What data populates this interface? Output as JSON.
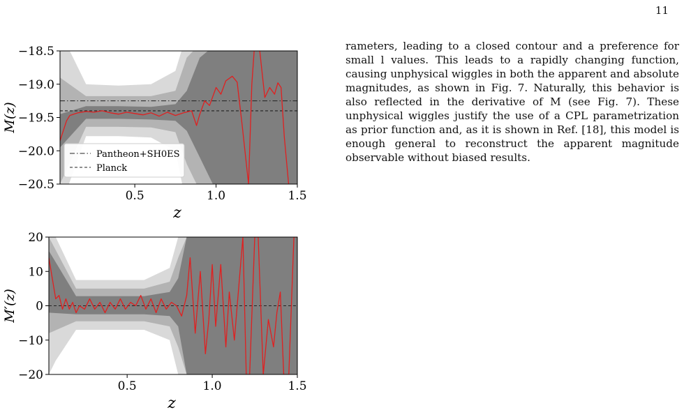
{
  "page": {
    "number": "11",
    "paragraph": "rameters, leading to a closed contour and a preference for small l values. This leads to a rapidly changing function, causing unphysical wiggles in both the apparent and absolute magnitudes, as shown in Fig. 7. Naturally, this behavior is also reflected in the derivative of M (see Fig. 7). These unphysical wiggles justify the use of a CPL parametrization as prior function and, as it is shown in Ref. [18], this model is enough general to reconstruct the apparent magnitude observable without biased results."
  },
  "colors": {
    "band_outer": "#d9d9d9",
    "band_mid": "#b3b3b3",
    "band_inner": "#7f7f7f",
    "median": "#e02020"
  },
  "chart_data": [
    {
      "type": "line",
      "panel": "top",
      "xlabel": "z",
      "ylabel": "M(z)",
      "xlim": [
        0.04,
        1.5
      ],
      "ylim": [
        -20.5,
        -18.5
      ],
      "xticks": [
        "0.5",
        "1.0",
        "1.5"
      ],
      "xtick_values": [
        0.5,
        1.0,
        1.5
      ],
      "yticks": [
        "−18.5",
        "−19.0",
        "−19.5",
        "−20.0",
        "−20.5"
      ],
      "ytick_values": [
        -18.5,
        -19.0,
        -19.5,
        -20.0,
        -20.5
      ],
      "reference_lines": [
        {
          "name": "Pantheon+SH0ES",
          "y": -19.25,
          "style": "dashdot"
        },
        {
          "name": "Planck",
          "y": -19.4,
          "style": "dashed"
        }
      ],
      "legend": {
        "position": "lower-left",
        "entries": [
          "Pantheon+SH0ES",
          "Planck"
        ]
      },
      "series": [
        {
          "role": "median",
          "x": [
            0.04,
            0.06,
            0.08,
            0.1,
            0.15,
            0.2,
            0.25,
            0.3,
            0.35,
            0.4,
            0.45,
            0.5,
            0.55,
            0.6,
            0.65,
            0.7,
            0.75,
            0.8,
            0.85,
            0.88,
            0.9,
            0.93,
            0.96,
            1.0,
            1.03,
            1.06,
            1.1,
            1.13,
            1.16,
            1.2,
            1.22,
            1.24,
            1.26,
            1.3,
            1.33,
            1.36,
            1.38,
            1.4,
            1.42,
            1.45
          ],
          "y": [
            -19.85,
            -19.7,
            -19.55,
            -19.47,
            -19.43,
            -19.41,
            -19.42,
            -19.4,
            -19.43,
            -19.45,
            -19.42,
            -19.44,
            -19.46,
            -19.43,
            -19.48,
            -19.42,
            -19.47,
            -19.43,
            -19.4,
            -19.62,
            -19.45,
            -19.25,
            -19.32,
            -19.05,
            -19.15,
            -18.95,
            -18.88,
            -18.97,
            -19.6,
            -20.5,
            -19.0,
            -18.3,
            -18.3,
            -19.2,
            -19.05,
            -19.15,
            -18.98,
            -19.05,
            -19.8,
            -20.6
          ]
        },
        {
          "role": "band-1sigma",
          "x": [
            0.04,
            0.2,
            0.4,
            0.6,
            0.75,
            0.82,
            0.9,
            1.0,
            1.1,
            1.2,
            1.3,
            1.4,
            1.5
          ],
          "lower": [
            -19.95,
            -19.52,
            -19.52,
            -19.53,
            -19.55,
            -19.7,
            -20.1,
            -20.6,
            -20.6,
            -20.6,
            -20.6,
            -20.6,
            -20.6
          ],
          "upper": [
            -19.45,
            -19.33,
            -19.33,
            -19.34,
            -19.3,
            -19.1,
            -18.6,
            -18.4,
            -18.4,
            -18.4,
            -18.4,
            -18.4,
            -18.4
          ]
        },
        {
          "role": "band-2sigma",
          "x": [
            0.04,
            0.2,
            0.4,
            0.6,
            0.75,
            0.82,
            0.9,
            1.0,
            1.5
          ],
          "lower": [
            -20.5,
            -19.64,
            -19.64,
            -19.65,
            -19.72,
            -20.2,
            -20.6,
            -20.6,
            -20.6
          ],
          "upper": [
            -18.9,
            -19.18,
            -19.18,
            -19.18,
            -19.1,
            -18.6,
            -18.4,
            -18.4,
            -18.4
          ]
        },
        {
          "role": "band-3sigma",
          "x": [
            0.04,
            0.08,
            0.2,
            0.4,
            0.6,
            0.75,
            0.8,
            1.5
          ],
          "lower": [
            -20.6,
            -20.6,
            -19.78,
            -19.78,
            -19.8,
            -20.0,
            -20.6,
            -20.6
          ],
          "upper": [
            -18.4,
            -18.4,
            -19.0,
            -19.02,
            -19.0,
            -18.8,
            -18.4,
            -18.4
          ]
        }
      ]
    },
    {
      "type": "line",
      "panel": "bottom",
      "xlabel": "z",
      "ylabel": "M′(z)",
      "xlim": [
        0.04,
        1.5
      ],
      "ylim": [
        -20,
        20
      ],
      "xticks": [
        "0.5",
        "1.0",
        "1.5"
      ],
      "xtick_values": [
        0.5,
        1.0,
        1.5
      ],
      "yticks": [
        "20",
        "10",
        "0",
        "−10",
        "−20"
      ],
      "ytick_values": [
        20,
        10,
        0,
        -10,
        -20
      ],
      "reference_lines": [
        {
          "y": 0,
          "style": "dashed"
        }
      ],
      "series": [
        {
          "role": "median",
          "x": [
            0.04,
            0.06,
            0.08,
            0.1,
            0.12,
            0.14,
            0.16,
            0.18,
            0.2,
            0.22,
            0.25,
            0.28,
            0.31,
            0.34,
            0.37,
            0.4,
            0.43,
            0.46,
            0.49,
            0.52,
            0.55,
            0.58,
            0.61,
            0.64,
            0.67,
            0.7,
            0.73,
            0.76,
            0.79,
            0.82,
            0.85,
            0.87,
            0.9,
            0.93,
            0.96,
            0.98,
            1.0,
            1.02,
            1.05,
            1.08,
            1.1,
            1.13,
            1.16,
            1.18,
            1.2,
            1.22,
            1.25,
            1.27,
            1.3,
            1.33,
            1.36,
            1.38,
            1.4,
            1.42,
            1.45,
            1.48,
            1.5
          ],
          "y": [
            14,
            8,
            2,
            3,
            -1,
            2,
            -1,
            1,
            -2,
            0,
            -1,
            2,
            -1,
            1,
            -2,
            1,
            -1,
            2,
            -1,
            1,
            0,
            3,
            -1,
            2,
            -2,
            2,
            -1,
            1,
            0,
            -3,
            3,
            14,
            -8,
            10,
            -14,
            -4,
            12,
            -6,
            12,
            -12,
            4,
            -10,
            8,
            20,
            -20,
            -20,
            20,
            20,
            -20,
            -4,
            -12,
            -2,
            4,
            -20,
            -20,
            20,
            20
          ]
        },
        {
          "role": "band-1sigma",
          "x": [
            0.04,
            0.2,
            0.4,
            0.6,
            0.75,
            0.8,
            0.85,
            0.9,
            1.5
          ],
          "lower": [
            -2,
            -2.5,
            -2.5,
            -2.5,
            -3,
            -6,
            -20,
            -20,
            -20
          ],
          "upper": [
            16,
            2.8,
            2.8,
            2.8,
            4,
            8,
            20,
            20,
            20
          ]
        },
        {
          "role": "band-2sigma",
          "x": [
            0.04,
            0.2,
            0.4,
            0.6,
            0.75,
            0.8,
            0.85,
            1.5
          ],
          "lower": [
            -8,
            -4.5,
            -4.5,
            -4.5,
            -6,
            -12,
            -20,
            -20
          ],
          "upper": [
            20,
            5,
            5,
            5,
            7,
            14,
            20,
            20
          ]
        },
        {
          "role": "band-3sigma",
          "x": [
            0.04,
            0.08,
            0.2,
            0.4,
            0.6,
            0.75,
            0.8,
            1.5
          ],
          "lower": [
            -20,
            -16,
            -7,
            -7,
            -7,
            -10,
            -20,
            -20
          ],
          "upper": [
            20,
            20,
            7.5,
            7.5,
            7.5,
            11,
            20,
            20
          ]
        }
      ]
    }
  ]
}
